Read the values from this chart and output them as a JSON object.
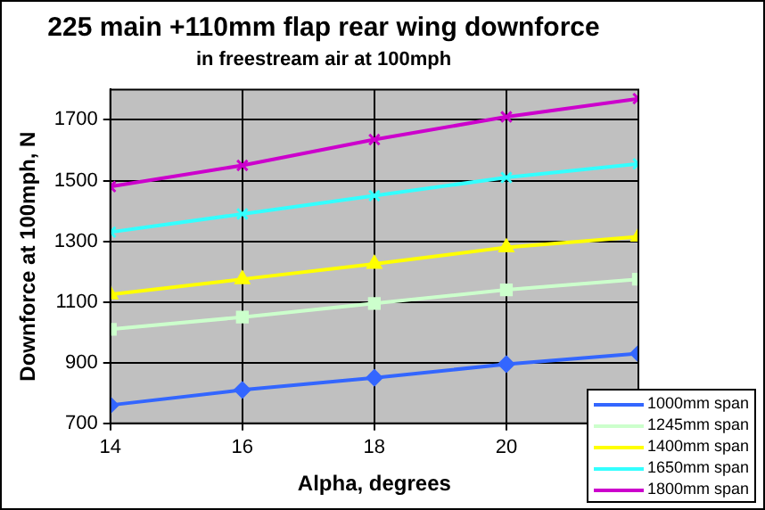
{
  "chart_data": {
    "type": "line",
    "title": "225 main +110mm flap rear wing downforce",
    "subtitle": "in freestream air at 100mph",
    "xlabel": "Alpha, degrees",
    "ylabel": "Downforce at 100mph, N",
    "x": [
      14,
      16,
      18,
      20,
      22
    ],
    "xlim": [
      14,
      22
    ],
    "xticks": [
      14,
      16,
      18,
      20
    ],
    "ylim": [
      700,
      1800
    ],
    "yticks": [
      700,
      900,
      1100,
      1300,
      1500,
      1700
    ],
    "grid": true,
    "legend": "bottom right",
    "series": [
      {
        "name": "1000mm span",
        "color": "#3366ff",
        "marker": "diamond",
        "values": [
          760,
          810,
          850,
          895,
          930
        ]
      },
      {
        "name": "1245mm span",
        "color": "#ccffcc",
        "marker": "square",
        "values": [
          1010,
          1050,
          1095,
          1140,
          1175
        ]
      },
      {
        "name": "1400mm span",
        "color": "#ffff00",
        "marker": "triangle",
        "values": [
          1125,
          1175,
          1225,
          1280,
          1315
        ]
      },
      {
        "name": "1650mm span",
        "color": "#33ffff",
        "marker": "cross",
        "values": [
          1330,
          1390,
          1450,
          1510,
          1555
        ]
      },
      {
        "name": "1800mm span",
        "color": "#cc00cc",
        "marker": "cross",
        "values": [
          1480,
          1550,
          1635,
          1710,
          1770
        ]
      }
    ]
  }
}
